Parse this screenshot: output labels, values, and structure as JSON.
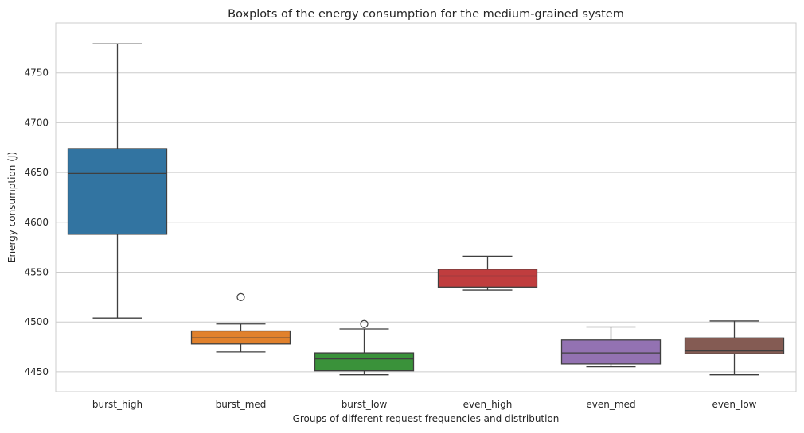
{
  "chart_data": {
    "type": "box",
    "title": "Boxplots of the energy consumption for the medium-grained system",
    "xlabel": "Groups of different request frequencies and distribution",
    "ylabel": "Energy consumption (J)",
    "ylim": [
      4430,
      4800
    ],
    "yticks": [
      4450,
      4500,
      4550,
      4600,
      4650,
      4700,
      4750
    ],
    "grid": "horizontal",
    "categories": [
      "burst_high",
      "burst_med",
      "burst_low",
      "even_high",
      "even_med",
      "even_low"
    ],
    "boxes": [
      {
        "category": "burst_high",
        "whisker_low": 4504,
        "q1": 4588,
        "median": 4649,
        "q3": 4674,
        "whisker_high": 4779,
        "outliers": []
      },
      {
        "category": "burst_med",
        "whisker_low": 4470,
        "q1": 4478,
        "median": 4484,
        "q3": 4491,
        "whisker_high": 4498,
        "outliers": [
          4525
        ]
      },
      {
        "category": "burst_low",
        "whisker_low": 4447,
        "q1": 4451,
        "median": 4463,
        "q3": 4469,
        "whisker_high": 4493,
        "outliers": [
          4498
        ]
      },
      {
        "category": "even_high",
        "whisker_low": 4532,
        "q1": 4535,
        "median": 4546,
        "q3": 4553,
        "whisker_high": 4566,
        "outliers": []
      },
      {
        "category": "even_med",
        "whisker_low": 4455,
        "q1": 4458,
        "median": 4469,
        "q3": 4482,
        "whisker_high": 4495,
        "outliers": []
      },
      {
        "category": "even_low",
        "whisker_low": 4447,
        "q1": 4468,
        "median": 4471,
        "q3": 4484,
        "whisker_high": 4501,
        "outliers": []
      }
    ],
    "colors": [
      "#3274a1",
      "#e1812c",
      "#3a923a",
      "#c03d3e",
      "#9372b2",
      "#845b53"
    ]
  }
}
